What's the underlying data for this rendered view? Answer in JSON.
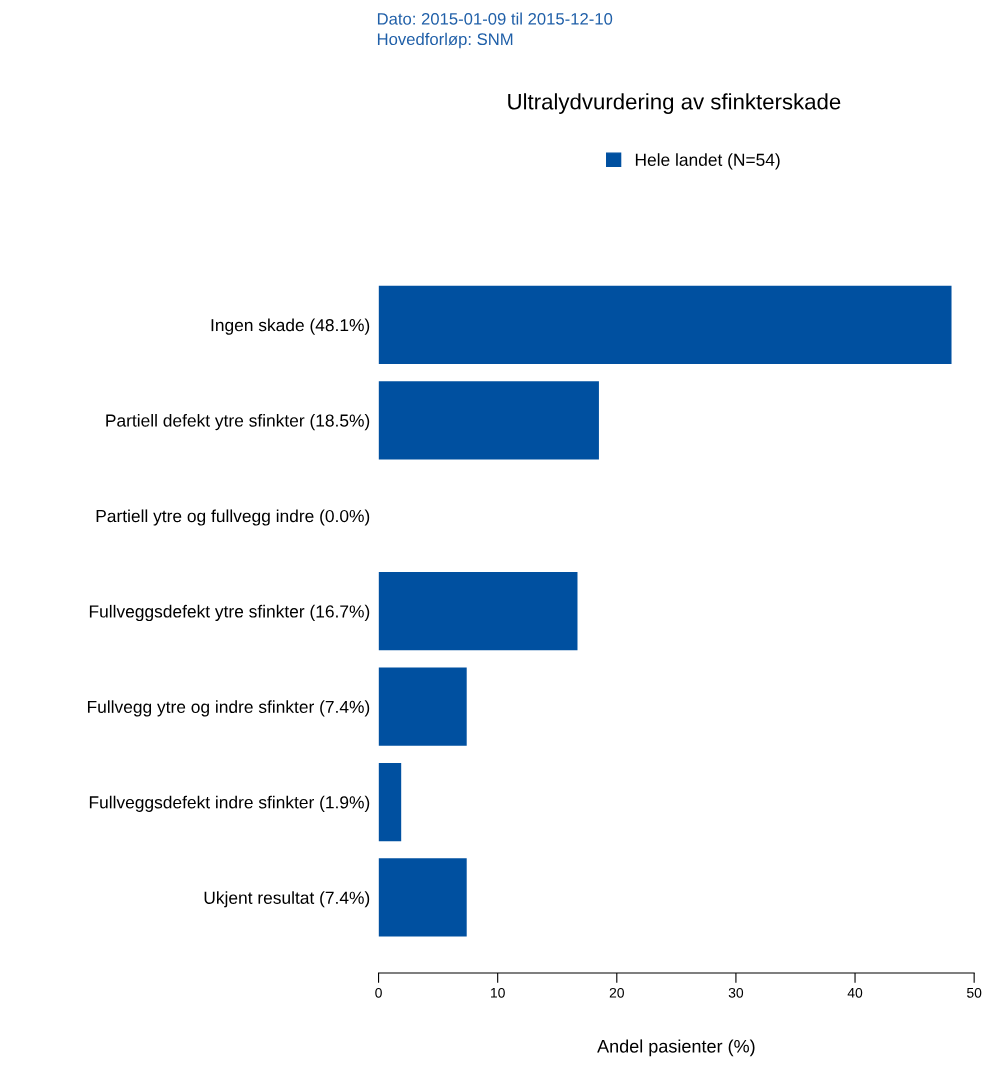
{
  "chart_data": {
    "type": "bar",
    "orientation": "horizontal",
    "title": "Ultralydvurdering av sfinkterskade",
    "xlabel": "Andel pasienter (%)",
    "annotations": [
      "Dato: 2015-01-09 til 2015-12-10",
      "Hovedforløp: SNM"
    ],
    "categories": [
      "Ingen skade (48.1%)",
      "Partiell defekt ytre sfinkter (18.5%)",
      "Partiell ytre og fullvegg indre (0.0%)",
      "Fullveggsdefekt ytre sfinkter (16.7%)",
      "Fullvegg ytre og indre sfinkter (7.4%)",
      "Fullveggsdefekt indre sfinkter (1.9%)",
      "Ukjent resultat (7.4%)"
    ],
    "series": [
      {
        "name": "Hele landet (N=54)",
        "color": "#0050a0",
        "values": [
          48.1,
          18.5,
          0.0,
          16.7,
          7.4,
          1.9,
          7.4
        ]
      }
    ],
    "xlim": [
      0,
      50
    ],
    "xticks": [
      0,
      10,
      20,
      30,
      40,
      50
    ],
    "grid": false,
    "legend": "top"
  }
}
